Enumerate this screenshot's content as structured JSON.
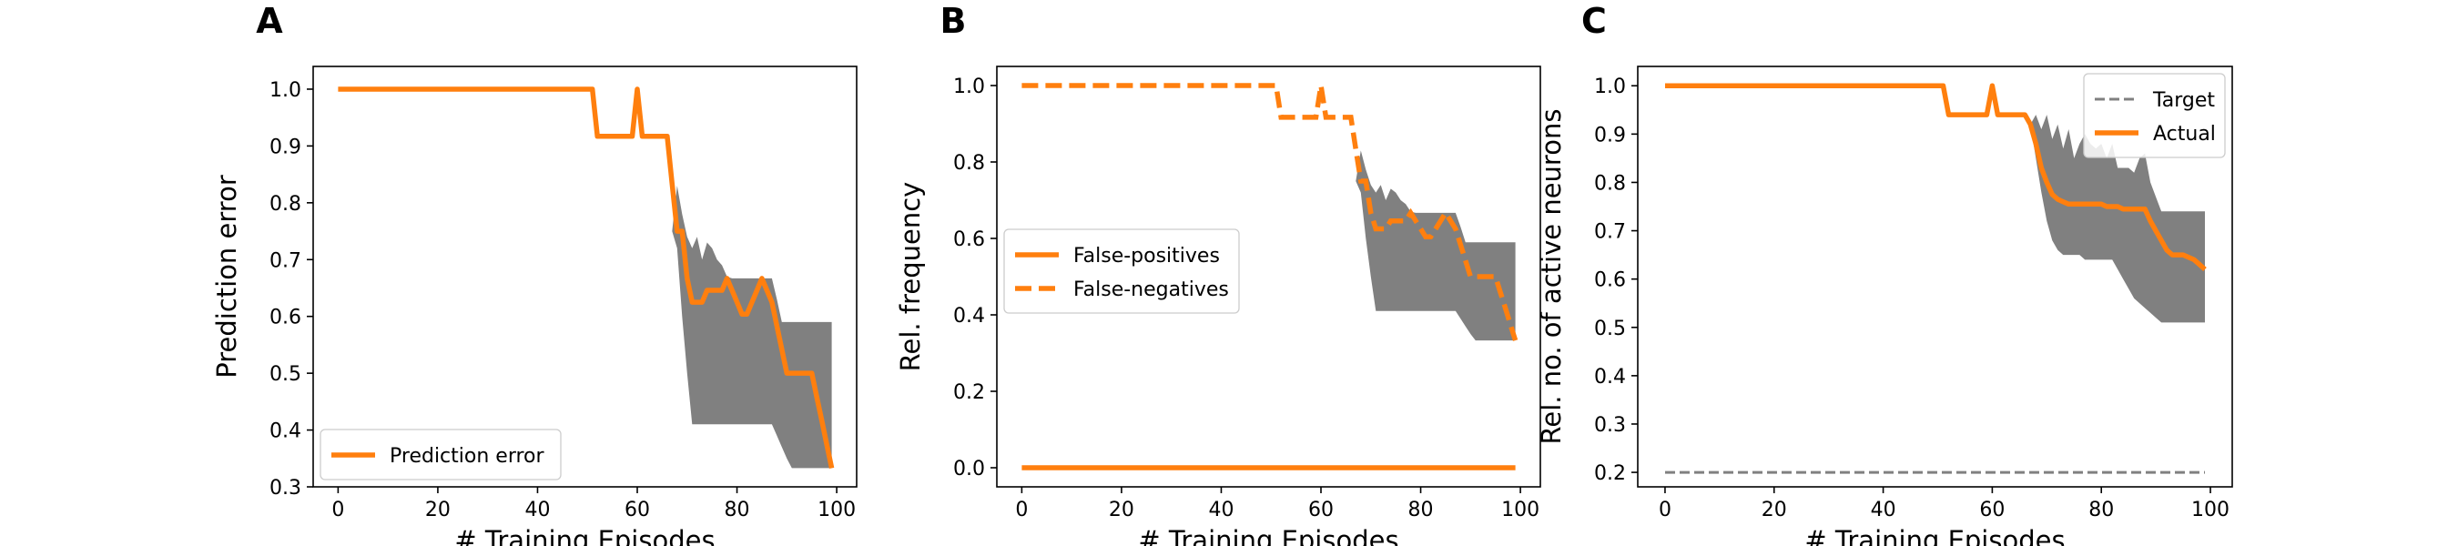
{
  "colors": {
    "series": "#ff7f0e",
    "band": "#808080",
    "target": "#808080",
    "axis": "#000000"
  },
  "chart_data": [
    {
      "type": "line",
      "panel_label": "A",
      "xlabel": "# Training Episodes",
      "ylabel": "Prediction error",
      "xlim": [
        -5,
        104
      ],
      "ylim": [
        0.3,
        1.04
      ],
      "xticks": [
        0,
        20,
        40,
        60,
        80,
        100
      ],
      "yticks": [
        0.3,
        0.4,
        0.5,
        0.6,
        0.7,
        0.8,
        0.9,
        1.0
      ],
      "ytick_decimals": 1,
      "grid": false,
      "legend_position": "lower-left",
      "series": [
        {
          "name": "Prediction error",
          "style": "solid",
          "x": [
            0,
            51,
            52,
            59,
            60,
            61,
            62,
            66,
            67,
            68,
            69,
            70,
            71,
            72,
            73,
            74,
            75,
            76,
            77,
            78,
            79,
            80,
            81,
            82,
            83,
            84,
            85,
            86,
            87,
            88,
            89,
            90,
            91,
            92,
            93,
            94,
            95,
            96,
            97,
            98,
            99
          ],
          "y": [
            1.0,
            1.0,
            0.917,
            0.917,
            1.0,
            0.917,
            0.917,
            0.917,
            0.833,
            0.75,
            0.75,
            0.667,
            0.625,
            0.625,
            0.625,
            0.646,
            0.646,
            0.646,
            0.646,
            0.667,
            0.646,
            0.625,
            0.604,
            0.604,
            0.625,
            0.646,
            0.667,
            0.646,
            0.625,
            0.583,
            0.542,
            0.5,
            0.5,
            0.5,
            0.5,
            0.5,
            0.5,
            0.458,
            0.417,
            0.375,
            0.333
          ]
        }
      ],
      "bands": [
        {
          "x": [
            67,
            68,
            69,
            70,
            71,
            72,
            73,
            74,
            75,
            76,
            77,
            78,
            79,
            80,
            81,
            82,
            83,
            84,
            85,
            86,
            87,
            88,
            89,
            90,
            91,
            92,
            93,
            94,
            95,
            96,
            97,
            98,
            99
          ],
          "upper": [
            0.75,
            0.83,
            0.78,
            0.74,
            0.72,
            0.74,
            0.7,
            0.73,
            0.72,
            0.7,
            0.69,
            0.67,
            0.667,
            0.667,
            0.667,
            0.667,
            0.667,
            0.667,
            0.667,
            0.667,
            0.667,
            0.63,
            0.59,
            0.59,
            0.59,
            0.59,
            0.59,
            0.59,
            0.59,
            0.59,
            0.59,
            0.59,
            0.59
          ],
          "lower": [
            0.75,
            0.72,
            0.6,
            0.5,
            0.41,
            0.41,
            0.41,
            0.41,
            0.41,
            0.41,
            0.41,
            0.41,
            0.41,
            0.41,
            0.41,
            0.41,
            0.41,
            0.41,
            0.41,
            0.41,
            0.41,
            0.39,
            0.37,
            0.35,
            0.333,
            0.333,
            0.333,
            0.333,
            0.333,
            0.333,
            0.333,
            0.333,
            0.333
          ]
        }
      ]
    },
    {
      "type": "line",
      "panel_label": "B",
      "xlabel": "# Training Episodes",
      "ylabel": "Rel. frequency",
      "xlim": [
        -5,
        104
      ],
      "ylim": [
        -0.05,
        1.05
      ],
      "xticks": [
        0,
        20,
        40,
        60,
        80,
        100
      ],
      "yticks": [
        0.0,
        0.2,
        0.4,
        0.6,
        0.8,
        1.0
      ],
      "ytick_decimals": 1,
      "grid": false,
      "legend_position": "center-left",
      "series": [
        {
          "name": "False-positives",
          "style": "solid",
          "x": [
            0,
            99
          ],
          "y": [
            0.0,
            0.0
          ]
        },
        {
          "name": "False-negatives",
          "style": "dashed",
          "x": [
            0,
            51,
            52,
            59,
            60,
            61,
            62,
            66,
            67,
            68,
            69,
            70,
            71,
            72,
            73,
            74,
            75,
            76,
            77,
            78,
            79,
            80,
            81,
            82,
            83,
            84,
            85,
            86,
            87,
            88,
            89,
            90,
            91,
            92,
            93,
            94,
            95,
            96,
            97,
            98,
            99
          ],
          "y": [
            1.0,
            1.0,
            0.917,
            0.917,
            1.0,
            0.917,
            0.917,
            0.917,
            0.833,
            0.75,
            0.75,
            0.667,
            0.625,
            0.625,
            0.625,
            0.646,
            0.646,
            0.646,
            0.646,
            0.667,
            0.646,
            0.625,
            0.604,
            0.604,
            0.625,
            0.646,
            0.667,
            0.646,
            0.625,
            0.583,
            0.542,
            0.5,
            0.5,
            0.5,
            0.5,
            0.5,
            0.5,
            0.458,
            0.417,
            0.375,
            0.333
          ]
        }
      ],
      "bands": [
        {
          "x": [
            67,
            68,
            69,
            70,
            71,
            72,
            73,
            74,
            75,
            76,
            77,
            78,
            79,
            80,
            81,
            82,
            83,
            84,
            85,
            86,
            87,
            88,
            89,
            90,
            91,
            92,
            93,
            94,
            95,
            96,
            97,
            98,
            99
          ],
          "upper": [
            0.75,
            0.83,
            0.78,
            0.74,
            0.72,
            0.74,
            0.7,
            0.73,
            0.72,
            0.7,
            0.69,
            0.67,
            0.667,
            0.667,
            0.667,
            0.667,
            0.667,
            0.667,
            0.667,
            0.667,
            0.667,
            0.63,
            0.59,
            0.59,
            0.59,
            0.59,
            0.59,
            0.59,
            0.59,
            0.59,
            0.59,
            0.59,
            0.59
          ],
          "lower": [
            0.75,
            0.72,
            0.6,
            0.5,
            0.41,
            0.41,
            0.41,
            0.41,
            0.41,
            0.41,
            0.41,
            0.41,
            0.41,
            0.41,
            0.41,
            0.41,
            0.41,
            0.41,
            0.41,
            0.41,
            0.41,
            0.39,
            0.37,
            0.35,
            0.333,
            0.333,
            0.333,
            0.333,
            0.333,
            0.333,
            0.333,
            0.333,
            0.333
          ]
        }
      ]
    },
    {
      "type": "line",
      "panel_label": "C",
      "xlabel": "# Training Episodes",
      "ylabel": "Rel. no. of active neurons",
      "xlim": [
        -5,
        104
      ],
      "ylim": [
        0.17,
        1.04
      ],
      "xticks": [
        0,
        20,
        40,
        60,
        80,
        100
      ],
      "yticks": [
        0.2,
        0.3,
        0.4,
        0.5,
        0.6,
        0.7,
        0.8,
        0.9,
        1.0
      ],
      "ytick_decimals": 1,
      "grid": false,
      "legend_position": "upper-right",
      "series": [
        {
          "name": "Target",
          "style": "target-dashed",
          "x": [
            0,
            99
          ],
          "y": [
            0.2,
            0.2
          ]
        },
        {
          "name": "Actual",
          "style": "solid",
          "x": [
            0,
            51,
            52,
            59,
            60,
            61,
            62,
            66,
            67,
            68,
            69,
            70,
            71,
            72,
            73,
            74,
            75,
            76,
            77,
            78,
            79,
            80,
            81,
            82,
            83,
            84,
            85,
            86,
            87,
            88,
            89,
            90,
            91,
            92,
            93,
            94,
            95,
            96,
            97,
            98,
            99
          ],
          "y": [
            1.0,
            1.0,
            0.94,
            0.94,
            1.0,
            0.94,
            0.94,
            0.94,
            0.92,
            0.88,
            0.83,
            0.8,
            0.775,
            0.765,
            0.76,
            0.755,
            0.755,
            0.755,
            0.755,
            0.755,
            0.755,
            0.755,
            0.75,
            0.75,
            0.75,
            0.745,
            0.745,
            0.745,
            0.745,
            0.745,
            0.72,
            0.7,
            0.68,
            0.66,
            0.65,
            0.65,
            0.65,
            0.645,
            0.64,
            0.63,
            0.62
          ]
        }
      ],
      "bands": [
        {
          "x": [
            67,
            68,
            69,
            70,
            71,
            72,
            73,
            74,
            75,
            76,
            77,
            78,
            79,
            80,
            81,
            82,
            83,
            84,
            85,
            86,
            87,
            88,
            89,
            90,
            91,
            92,
            93,
            94,
            95,
            96,
            97,
            98,
            99
          ],
          "upper": [
            0.92,
            0.94,
            0.91,
            0.94,
            0.89,
            0.92,
            0.87,
            0.91,
            0.85,
            0.88,
            0.9,
            0.88,
            0.87,
            0.88,
            0.85,
            0.88,
            0.83,
            0.83,
            0.83,
            0.82,
            0.85,
            0.86,
            0.8,
            0.77,
            0.74,
            0.74,
            0.74,
            0.74,
            0.74,
            0.74,
            0.74,
            0.74,
            0.74
          ],
          "lower": [
            0.92,
            0.85,
            0.78,
            0.72,
            0.68,
            0.66,
            0.65,
            0.65,
            0.65,
            0.65,
            0.64,
            0.64,
            0.64,
            0.64,
            0.64,
            0.64,
            0.62,
            0.6,
            0.58,
            0.56,
            0.55,
            0.54,
            0.53,
            0.52,
            0.51,
            0.51,
            0.51,
            0.51,
            0.51,
            0.51,
            0.51,
            0.51,
            0.51
          ]
        }
      ]
    }
  ]
}
